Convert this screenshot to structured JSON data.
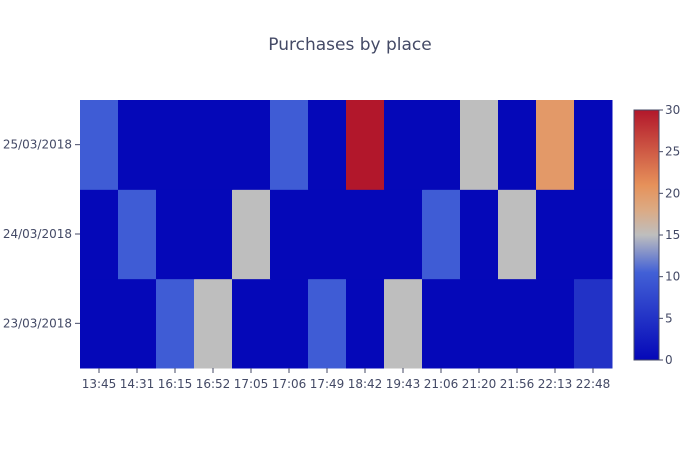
{
  "chart_data": {
    "type": "heatmap",
    "title": "Purchases by place",
    "x": [
      "13:45",
      "14:31",
      "16:15",
      "16:52",
      "17:05",
      "17:06",
      "17:49",
      "18:42",
      "19:43",
      "21:06",
      "21:20",
      "21:56",
      "22:13",
      "22:48"
    ],
    "y": [
      "23/03/2018",
      "24/03/2018",
      "25/03/2018"
    ],
    "z": [
      [
        0,
        0,
        10,
        15,
        0,
        0,
        10,
        0,
        15,
        0,
        0,
        0,
        0,
        5
      ],
      [
        0,
        10,
        0,
        0,
        15,
        0,
        0,
        0,
        0,
        10,
        0,
        15,
        0,
        0
      ],
      [
        10,
        0,
        0,
        0,
        0,
        10,
        0,
        30,
        0,
        0,
        15,
        0,
        20,
        0
      ]
    ],
    "zrange": [
      0,
      30
    ],
    "colorbar_ticks": [
      0,
      5,
      10,
      15,
      20,
      25,
      30
    ],
    "colorscale": [
      [
        0.0,
        "#0508b8"
      ],
      [
        0.35,
        "#4260d6"
      ],
      [
        0.5,
        "#bebebe"
      ],
      [
        0.6,
        "#dcaa84"
      ],
      [
        0.7,
        "#e6915a"
      ],
      [
        1.0,
        "#b2172b"
      ]
    ]
  }
}
